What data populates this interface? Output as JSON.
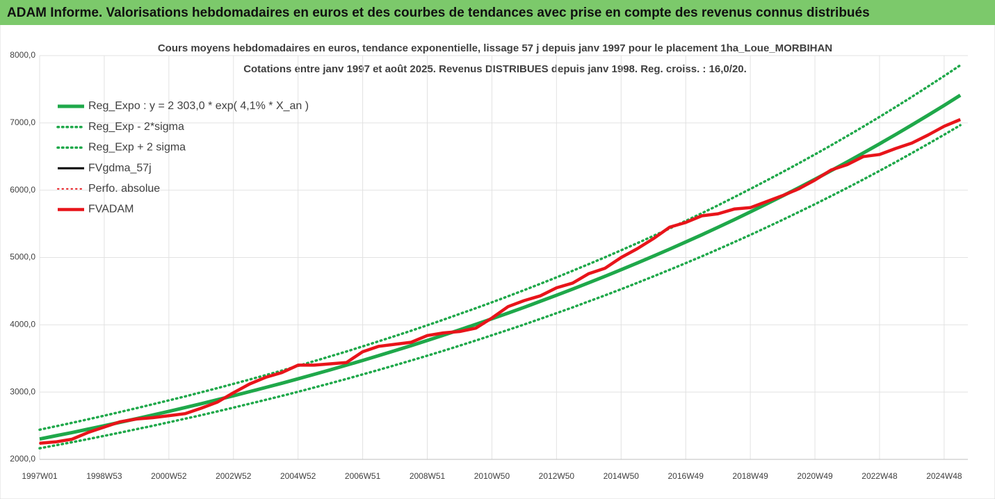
{
  "header": {
    "title": "ADAM Informe. Valorisations hebdomadaires en euros et des courbes de tendances avec prise en compte des revenus connus distribués"
  },
  "chart_data": {
    "type": "line",
    "title": "Cours moyens hebdomadaires en euros, tendance exponentielle, lissage 57 j depuis janv 1997 pour le placement 1ha_Loue_MORBIHAN",
    "subtitle": "Cotations entre janv 1997 et août 2025. Revenus DISTRIBUES depuis janv 1998. Reg. croiss. : 16,0/20.",
    "categories": [
      "1997W01",
      null,
      null,
      null,
      "1998W53",
      null,
      null,
      null,
      "2000W52",
      null,
      null,
      null,
      "2002W52",
      null,
      null,
      null,
      "2004W52",
      null,
      null,
      null,
      "2006W51",
      null,
      null,
      null,
      "2008W51",
      null,
      null,
      null,
      "2010W50",
      null,
      null,
      null,
      "2012W50",
      null,
      null,
      null,
      "2014W50",
      null,
      null,
      null,
      "2016W49",
      null,
      null,
      null,
      "2018W49",
      null,
      null,
      null,
      "2020W49",
      null,
      null,
      null,
      "2022W48",
      null,
      null,
      null,
      "2024W48",
      null
    ],
    "ylim": [
      2000,
      8000
    ],
    "yticks": [
      {
        "value": 2000,
        "label": "2000,0"
      },
      {
        "value": 3000,
        "label": "3000,0"
      },
      {
        "value": 4000,
        "label": "4000,0"
      },
      {
        "value": 5000,
        "label": "5000,0"
      },
      {
        "value": 6000,
        "label": "6000,0"
      },
      {
        "value": 7000,
        "label": "7000,0"
      },
      {
        "value": 8000,
        "label": "8000,0"
      }
    ],
    "grid": true,
    "legend": "top-left",
    "series": [
      {
        "name": "Reg_Expo : y = 2 303,0 * exp( 4,1% *  X_an )",
        "color": "#1fa84a",
        "style": "solid",
        "values": [
          2303,
          2351,
          2399,
          2449,
          2500,
          2552,
          2605,
          2659,
          2714,
          2770,
          2827,
          2886,
          2946,
          3007,
          3069,
          3132,
          3197,
          3264,
          3331,
          3400,
          3471,
          3543,
          3616,
          3691,
          3767,
          3845,
          3925,
          4006,
          4089,
          4174,
          4260,
          4349,
          4439,
          4531,
          4625,
          4720,
          4818,
          4918,
          5020,
          5124,
          5230,
          5338,
          5449,
          5562,
          5677,
          5795,
          5915,
          6037,
          6162,
          6290,
          6420,
          6553,
          6689,
          6828,
          6969,
          7114,
          7261,
          7411
        ]
      },
      {
        "name": "Reg_Exp - 2*sigma",
        "color": "#1fa84a",
        "style": "dotted",
        "values": [
          2165,
          2210,
          2255,
          2302,
          2350,
          2399,
          2449,
          2499,
          2551,
          2604,
          2657,
          2713,
          2769,
          2827,
          2885,
          2944,
          3005,
          3068,
          3131,
          3196,
          3263,
          3330,
          3399,
          3470,
          3541,
          3614,
          3690,
          3766,
          3844,
          3924,
          4004,
          4088,
          4173,
          4259,
          4348,
          4437,
          4529,
          4623,
          4719,
          4817,
          4916,
          5018,
          5122,
          5228,
          5336,
          5447,
          5560,
          5675,
          5792,
          5913,
          6035,
          6160,
          6288,
          6418,
          6551,
          6687,
          6825,
          6966
        ]
      },
      {
        "name": "Reg_Exp + 2 sigma",
        "color": "#1fa84a",
        "style": "dotted",
        "values": [
          2441,
          2492,
          2543,
          2596,
          2650,
          2705,
          2761,
          2819,
          2877,
          2936,
          2997,
          3059,
          3123,
          3187,
          3253,
          3320,
          3389,
          3460,
          3531,
          3604,
          3679,
          3756,
          3833,
          3912,
          3993,
          4076,
          4161,
          4246,
          4334,
          4424,
          4516,
          4610,
          4705,
          4803,
          4902,
          5003,
          5107,
          5213,
          5321,
          5431,
          5544,
          5658,
          5776,
          5896,
          6018,
          6143,
          6270,
          6399,
          6532,
          6667,
          6805,
          6946,
          7090,
          7237,
          7387,
          7541,
          7697,
          7856
        ]
      },
      {
        "name": "FVgdma_57j",
        "color": "#000000",
        "style": "solid",
        "values": [
          2240,
          2260,
          2300,
          2400,
          2480,
          2560,
          2600,
          2620,
          2650,
          2680,
          2760,
          2850,
          2990,
          3120,
          3220,
          3290,
          3400,
          3400,
          3420,
          3440,
          3600,
          3680,
          3710,
          3740,
          3840,
          3880,
          3900,
          3950,
          4100,
          4270,
          4360,
          4430,
          4550,
          4620,
          4760,
          4840,
          5000,
          5130,
          5280,
          5450,
          5520,
          5620,
          5650,
          5720,
          5740,
          5830,
          5920,
          6020,
          6150,
          6300,
          6380,
          6500,
          6530,
          6620,
          6700,
          6820,
          6950,
          7050
        ]
      },
      {
        "name": "Perfo. absolue",
        "color": "#e8141a",
        "style": "dotted",
        "values": [
          2240,
          2260,
          2300,
          2400,
          2480,
          2560,
          2600,
          2620,
          2650,
          2680,
          2760,
          2850,
          2990,
          3120,
          3220,
          3290,
          3400,
          3400,
          3420,
          3440,
          3600,
          3680,
          3710,
          3740,
          3840,
          3880,
          3900,
          3950,
          4100,
          4270,
          4360,
          4430,
          4550,
          4620,
          4760,
          4840,
          5000,
          5130,
          5280,
          5450,
          5520,
          5620,
          5650,
          5720,
          5740,
          5830,
          5920,
          6020,
          6150,
          6300,
          6380,
          6500,
          6530,
          6620,
          6700,
          6820,
          6950,
          7050
        ]
      },
      {
        "name": "FVADAM",
        "color": "#e8141a",
        "style": "solid",
        "values": [
          2240,
          2260,
          2300,
          2400,
          2480,
          2560,
          2600,
          2620,
          2650,
          2680,
          2760,
          2850,
          2990,
          3120,
          3220,
          3290,
          3400,
          3400,
          3420,
          3440,
          3600,
          3680,
          3710,
          3740,
          3840,
          3880,
          3900,
          3950,
          4100,
          4270,
          4360,
          4430,
          4550,
          4620,
          4760,
          4840,
          5000,
          5130,
          5280,
          5450,
          5520,
          5620,
          5650,
          5720,
          5740,
          5830,
          5920,
          6020,
          6150,
          6300,
          6380,
          6500,
          6530,
          6620,
          6700,
          6820,
          6950,
          7050
        ]
      }
    ]
  }
}
